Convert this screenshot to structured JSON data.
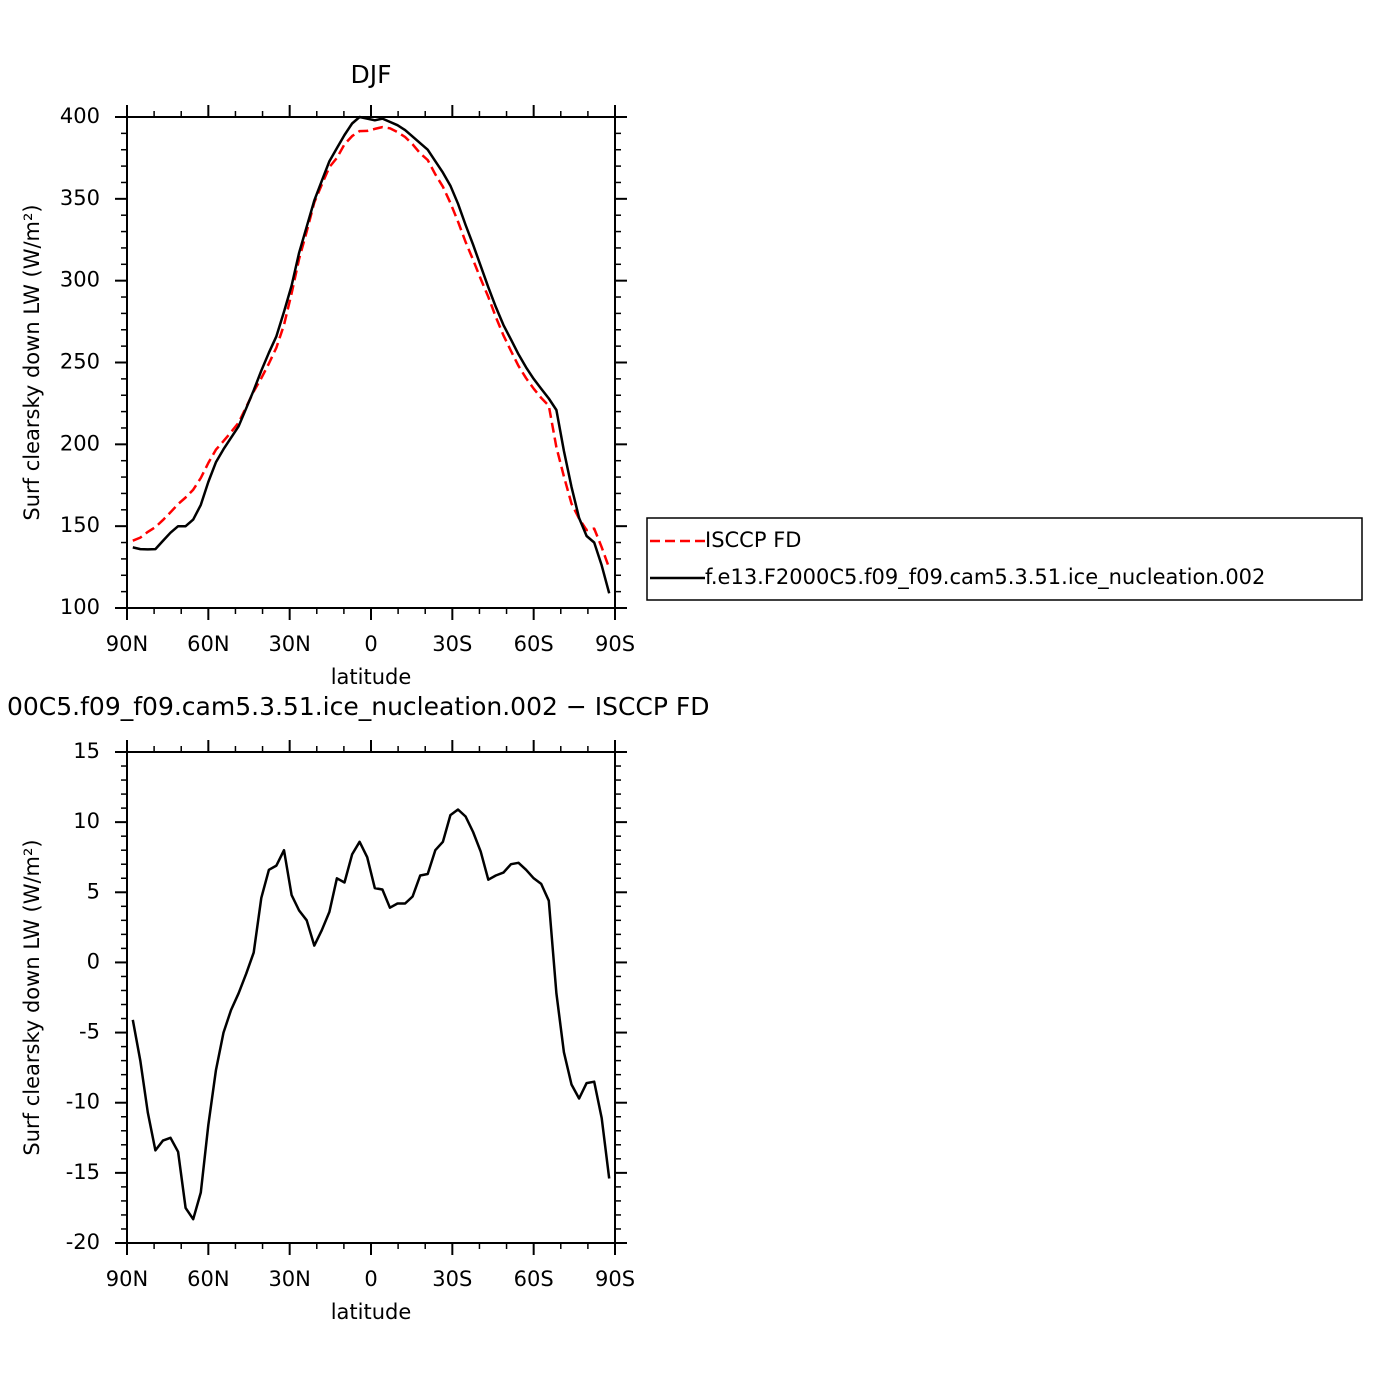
{
  "chart_data": [
    {
      "type": "line",
      "title": "DJF",
      "xlabel": "latitude",
      "ylabel": "Surf clearsky down LW (W/m²)",
      "x": [
        87.86,
        85.1,
        82.31,
        79.53,
        76.74,
        73.95,
        71.16,
        68.37,
        65.58,
        62.79,
        60,
        57.21,
        54.42,
        51.63,
        48.84,
        46.04,
        43.25,
        40.46,
        37.67,
        34.88,
        32.09,
        29.3,
        26.51,
        23.72,
        20.93,
        18.14,
        15.35,
        12.56,
        9.77,
        6.98,
        4.19,
        1.4,
        -1.4,
        -4.19,
        -6.98,
        -9.77,
        -12.56,
        -15.35,
        -18.14,
        -20.93,
        -23.72,
        -26.51,
        -29.3,
        -32.09,
        -34.88,
        -37.67,
        -40.46,
        -43.25,
        -46.04,
        -48.84,
        -51.63,
        -54.42,
        -57.21,
        -60,
        -62.79,
        -65.58,
        -68.37,
        -71.16,
        -73.95,
        -76.74,
        -79.53,
        -82.31,
        -85.1,
        -87.86
      ],
      "xlim": [
        90,
        -90
      ],
      "xticks": [
        {
          "value": 90,
          "label": "90N"
        },
        {
          "value": 60,
          "label": "60N"
        },
        {
          "value": 30,
          "label": "30N"
        },
        0,
        {
          "value": -30,
          "label": "30S"
        },
        {
          "value": -60,
          "label": "60S"
        },
        {
          "value": -90,
          "label": "90S"
        }
      ],
      "ylim": [
        100,
        400
      ],
      "yticks": [
        100,
        150,
        200,
        250,
        300,
        350,
        400
      ],
      "legend": "right",
      "series": [
        {
          "name": "ISCCP FD",
          "color": "#ff0000",
          "style": "dashed",
          "values": [
            141.1,
            143.0,
            146.5,
            149.4,
            153.7,
            158.5,
            163.5,
            167.5,
            172.3,
            179.4,
            188.6,
            196.7,
            202.0,
            207.4,
            213.2,
            222.8,
            232.3,
            240.4,
            249.4,
            259.1,
            273.0,
            292.2,
            313.3,
            330.0,
            347.8,
            358.7,
            369.4,
            375.0,
            383.3,
            388.3,
            391.4,
            391.5,
            392.7,
            393.8,
            393.1,
            390.8,
            387.8,
            383.3,
            377.8,
            373.7,
            365.0,
            357.4,
            347.5,
            336.1,
            323.6,
            312.7,
            301.1,
            290.1,
            277.8,
            266.6,
            257.0,
            247.9,
            240.4,
            234.0,
            228.4,
            223.6,
            198.2,
            180.4,
            163.7,
            154.7,
            147.6,
            148.5,
            137.1,
            124.4
          ]
        },
        {
          "name": "f.e13.F2000C5.f09_f09.cam5.3.51.ice_nucleation.002",
          "color": "#000000",
          "style": "solid",
          "values": [
            137,
            136,
            135.8,
            136,
            141,
            146,
            150,
            150,
            154,
            163,
            177,
            189,
            197,
            204,
            211,
            222,
            233,
            245,
            256,
            266,
            281,
            297,
            317,
            333,
            349,
            361,
            373,
            381,
            389,
            396,
            400,
            399,
            398,
            399,
            397,
            395,
            392,
            388,
            384,
            380,
            373,
            366,
            358,
            347,
            334,
            322,
            309,
            296,
            284,
            273,
            264,
            255,
            247,
            240,
            234,
            228,
            221,
            196,
            174,
            155,
            144,
            140,
            126,
            109
          ]
        }
      ]
    },
    {
      "type": "line",
      "title": "00C5.f09_f09.cam5.3.51.ice_nucleation.002 − ISCCP FD",
      "xlabel": "latitude",
      "ylabel": "Surf clearsky down LW (W/m²)",
      "x": [
        87.86,
        85.1,
        82.31,
        79.53,
        76.74,
        73.95,
        71.16,
        68.37,
        65.58,
        62.79,
        60,
        57.21,
        54.42,
        51.63,
        48.84,
        46.04,
        43.25,
        40.46,
        37.67,
        34.88,
        32.09,
        29.3,
        26.51,
        23.72,
        20.93,
        18.14,
        15.35,
        12.56,
        9.77,
        6.98,
        4.19,
        1.4,
        -1.4,
        -4.19,
        -6.98,
        -9.77,
        -12.56,
        -15.35,
        -18.14,
        -20.93,
        -23.72,
        -26.51,
        -29.3,
        -32.09,
        -34.88,
        -37.67,
        -40.46,
        -43.25,
        -46.04,
        -48.84,
        -51.63,
        -54.42,
        -57.21,
        -60,
        -62.79,
        -65.58,
        -68.37,
        -71.16,
        -73.95,
        -76.74,
        -79.53,
        -82.31,
        -85.1,
        -87.86
      ],
      "xlim": [
        90,
        -90
      ],
      "xticks": [
        {
          "value": 90,
          "label": "90N"
        },
        {
          "value": 60,
          "label": "60N"
        },
        {
          "value": 30,
          "label": "30N"
        },
        0,
        {
          "value": -30,
          "label": "30S"
        },
        {
          "value": -60,
          "label": "60S"
        },
        {
          "value": -90,
          "label": "90S"
        }
      ],
      "ylim": [
        -20,
        15
      ],
      "yticks": [
        -20,
        -15,
        -10,
        -5,
        0,
        5,
        10,
        15
      ],
      "color": "#000000",
      "values": [
        -4.1,
        -7.0,
        -10.7,
        -13.4,
        -12.7,
        -12.5,
        -13.5,
        -17.5,
        -18.3,
        -16.4,
        -11.6,
        -7.7,
        -5.0,
        -3.4,
        -2.2,
        -0.8,
        0.7,
        4.6,
        6.6,
        6.9,
        8.0,
        4.8,
        3.7,
        3.0,
        1.2,
        2.3,
        3.6,
        6.0,
        5.7,
        7.7,
        8.6,
        7.5,
        5.3,
        5.2,
        3.9,
        4.2,
        4.2,
        4.7,
        6.2,
        6.3,
        8.0,
        8.6,
        10.5,
        10.9,
        10.4,
        9.3,
        7.9,
        5.9,
        6.2,
        6.4,
        7.0,
        7.1,
        6.6,
        6.0,
        5.6,
        4.4,
        -2.2,
        -6.4,
        -8.7,
        -9.7,
        -8.6,
        -8.5,
        -11.1,
        -15.4
      ]
    }
  ]
}
